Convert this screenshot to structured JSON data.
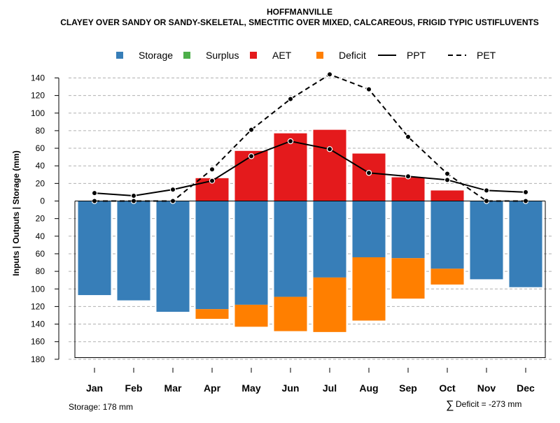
{
  "chart_data": {
    "type": "bar",
    "title": "HOFFMANVILLE",
    "subtitle": "CLAYEY OVER SANDY OR SANDY-SKELETAL, SMECTITIC OVER MIXED, CALCAREOUS, FRIGID TYPIC USTIFLUVENTS",
    "ylabel": "Inputs | Outputs | Storage     (mm)",
    "ylim": [
      -180,
      150
    ],
    "yticks": [
      140,
      120,
      100,
      80,
      60,
      40,
      20,
      0,
      -20,
      -40,
      -60,
      -80,
      -100,
      -120,
      -140,
      -160,
      -180
    ],
    "ytick_labels": [
      "140",
      "120",
      "100",
      "80",
      "60",
      "40",
      "20",
      "0",
      "20",
      "40",
      "60",
      "80",
      "100",
      "120",
      "140",
      "160",
      "180"
    ],
    "categories": [
      "Jan",
      "Feb",
      "Mar",
      "Apr",
      "May",
      "Jun",
      "Jul",
      "Aug",
      "Sep",
      "Oct",
      "Nov",
      "Dec"
    ],
    "series": [
      {
        "name": "Storage",
        "color": "#377eb8",
        "values": [
          107,
          113,
          126,
          123,
          118,
          109,
          87,
          64,
          65,
          77,
          89,
          98
        ]
      },
      {
        "name": "Surplus",
        "color": "#4daf4a",
        "values": [
          0,
          0,
          0,
          0,
          0,
          0,
          0,
          0,
          0,
          0,
          0,
          0
        ]
      },
      {
        "name": "AET",
        "color": "#e41a1c",
        "values": [
          0,
          0,
          0,
          26,
          57,
          77,
          81,
          54,
          27,
          12,
          0,
          0
        ]
      },
      {
        "name": "Deficit",
        "color": "#ff7f00",
        "values": [
          0,
          0,
          0,
          11,
          25,
          39,
          62,
          72,
          46,
          18,
          0,
          0
        ]
      },
      {
        "name": "PPT",
        "color": "#000000",
        "style": "solid",
        "values": [
          9,
          6,
          13,
          23,
          51,
          68,
          59,
          32,
          28,
          24,
          12,
          10
        ]
      },
      {
        "name": "PET",
        "color": "#000000",
        "style": "dashed",
        "values": [
          0,
          0,
          0,
          36,
          81,
          116,
          144,
          127,
          73,
          31,
          0,
          0
        ]
      }
    ],
    "legend": [
      "Storage",
      "Surplus",
      "AET",
      "Deficit",
      "PPT",
      "PET"
    ],
    "legend_position": "top",
    "grid": true
  },
  "footer": {
    "storage_label": "Storage: 178 mm",
    "deficit_symbol": "∑",
    "deficit_label": "Deficit = -273 mm"
  }
}
